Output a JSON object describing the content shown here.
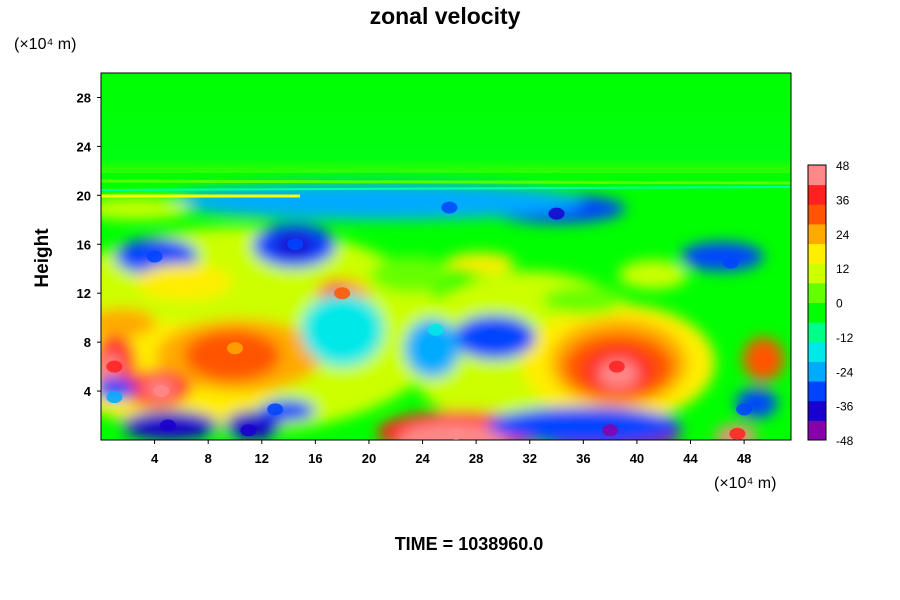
{
  "chart_data": {
    "type": "heatmap",
    "title": "zonal velocity",
    "xlabel": "",
    "ylabel": "Height",
    "x_unit": "(×10⁴ m)",
    "y_unit": "(×10⁴ m)",
    "xlim": [
      0,
      51.5
    ],
    "ylim": [
      0,
      30
    ],
    "x_ticks": [
      4,
      8,
      12,
      16,
      20,
      24,
      28,
      32,
      36,
      40,
      44,
      48
    ],
    "y_ticks": [
      4,
      8,
      12,
      16,
      20,
      24,
      28
    ],
    "colorbar": {
      "range": [
        -48,
        48
      ],
      "ticks": [
        48,
        36,
        24,
        12,
        0,
        -12,
        -24,
        -36,
        -48
      ],
      "colors": [
        "#8800aa",
        "#1a00cc",
        "#0044ff",
        "#00aaff",
        "#00e8e8",
        "#00ff88",
        "#00ff00",
        "#66ff00",
        "#ccff00",
        "#ffee00",
        "#ffaa00",
        "#ff5500",
        "#ff2020",
        "#ff8888"
      ]
    },
    "features": [
      {
        "x": 38.5,
        "y": 6.0,
        "value": 40
      },
      {
        "x": 26.5,
        "y": 0.5,
        "value": 45
      },
      {
        "x": 4.5,
        "y": 4.0,
        "value": 42
      },
      {
        "x": 1.0,
        "y": 6.0,
        "value": 40
      },
      {
        "x": 49.5,
        "y": 6.5,
        "value": 34
      },
      {
        "x": 47.5,
        "y": 0.5,
        "value": 40
      },
      {
        "x": 10.0,
        "y": 7.5,
        "value": 26
      },
      {
        "x": 2.0,
        "y": 9.5,
        "value": 22
      },
      {
        "x": 18.0,
        "y": 12.0,
        "value": 30
      },
      {
        "x": 38.0,
        "y": 0.8,
        "value": -48
      },
      {
        "x": 5.0,
        "y": 1.2,
        "value": -40
      },
      {
        "x": 11.0,
        "y": 0.8,
        "value": -38
      },
      {
        "x": 13.0,
        "y": 2.5,
        "value": -30
      },
      {
        "x": 29.0,
        "y": 8.5,
        "value": -32
      },
      {
        "x": 14.5,
        "y": 16.0,
        "value": -34
      },
      {
        "x": 34.0,
        "y": 18.5,
        "value": -38
      },
      {
        "x": 26.0,
        "y": 19.0,
        "value": -30
      },
      {
        "x": 4.0,
        "y": 15.0,
        "value": -28
      },
      {
        "x": 25.0,
        "y": 9.0,
        "value": -20
      },
      {
        "x": 47.0,
        "y": 14.5,
        "value": -34
      },
      {
        "x": 48.0,
        "y": 2.5,
        "value": -34
      },
      {
        "x": 1.0,
        "y": 3.5,
        "value": -24
      }
    ]
  },
  "footer": {
    "time_label": "TIME = 1038960.0"
  }
}
